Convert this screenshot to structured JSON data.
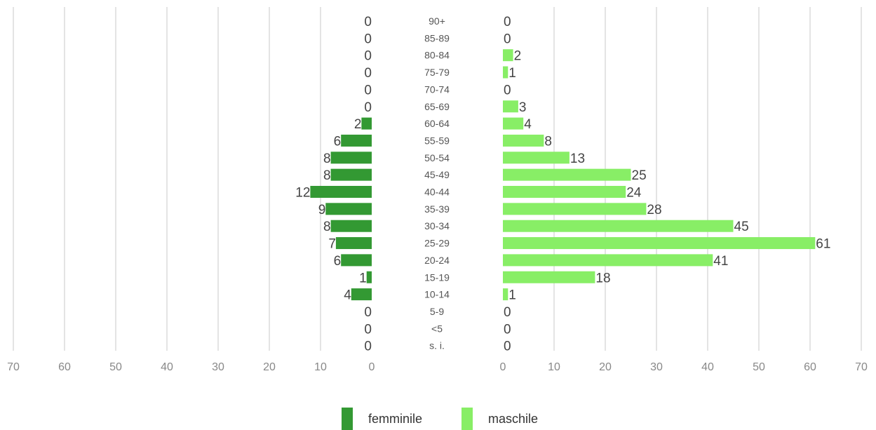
{
  "chart_data": {
    "type": "bar",
    "orientation": "horizontal-pyramid",
    "categories": [
      "90+",
      "85-89",
      "80-84",
      "75-79",
      "70-74",
      "65-69",
      "60-64",
      "55-59",
      "50-54",
      "45-49",
      "40-44",
      "35-39",
      "30-34",
      "25-29",
      "20-24",
      "15-19",
      "10-14",
      "5-9",
      "<5",
      "s. i."
    ],
    "series": [
      {
        "name": "femminile",
        "color": "#339933",
        "values": [
          0,
          0,
          0,
          0,
          0,
          0,
          2,
          6,
          8,
          8,
          12,
          9,
          8,
          7,
          6,
          1,
          4,
          0,
          0,
          0
        ]
      },
      {
        "name": "maschile",
        "color": "#88ee66",
        "values": [
          0,
          0,
          2,
          1,
          0,
          3,
          4,
          8,
          13,
          25,
          24,
          28,
          45,
          61,
          41,
          18,
          1,
          0,
          0,
          0
        ]
      }
    ],
    "xlim": [
      0,
      70
    ],
    "x_ticks": [
      "0",
      "10",
      "20",
      "30",
      "40",
      "50",
      "60",
      "70"
    ],
    "grid": true,
    "legend": "bottom-center"
  }
}
